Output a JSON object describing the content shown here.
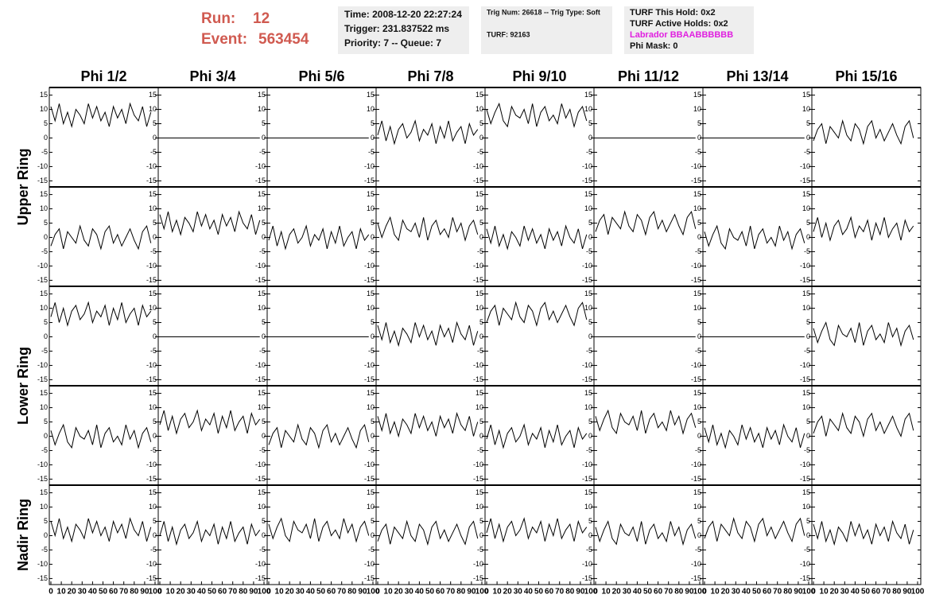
{
  "header": {
    "run_label": "Run:",
    "run": "12",
    "event_label": "Event:",
    "event": "563454",
    "info1": [
      "Time: 2008-12-20 22:27:24",
      "Trigger: 231.837522 ms",
      "Priority: 7 -- Queue: 7"
    ],
    "info2": [
      "Trig Num: 26618 -- Trig Type: Soft",
      "TURF: 92163"
    ],
    "info3": [
      "TURF This Hold: 0x2",
      "TURF Active Holds: 0x2",
      "Labrador BBAABBBBBB",
      "Phi Mask: 0"
    ]
  },
  "chart_data": {
    "type": "line",
    "columns": [
      "Phi 1/2",
      "Phi 3/4",
      "Phi 5/6",
      "Phi 7/8",
      "Phi 9/10",
      "Phi 11/12",
      "Phi 13/14",
      "Phi 15/16"
    ],
    "rows": [
      "Upper Ring",
      "Lower Ring",
      "Nadir Ring"
    ],
    "color": "#000000",
    "xlim": [
      0,
      100
    ],
    "xticks": [
      0,
      10,
      20,
      30,
      40,
      50,
      60,
      70,
      80,
      90,
      100
    ],
    "ylim": [
      -16,
      16
    ],
    "yticks": [
      -15,
      -10,
      -5,
      0,
      5,
      10,
      15
    ],
    "x": [
      0,
      4,
      8,
      12,
      16,
      20,
      24,
      28,
      32,
      36,
      40,
      44,
      48,
      52,
      56,
      60,
      64,
      68,
      72,
      76,
      80,
      84,
      88,
      92,
      96
    ],
    "panels": [
      {
        "values": [
          11,
          6,
          12,
          5,
          9,
          4,
          10,
          8,
          5,
          12,
          7,
          11,
          6,
          9,
          4,
          11,
          7,
          10,
          5,
          12,
          8,
          6,
          11,
          4,
          9
        ]
      },
      {
        "values": [
          0,
          0,
          0,
          0,
          0,
          0,
          0,
          0,
          0,
          0,
          0,
          0,
          0,
          0,
          0,
          0,
          0,
          0,
          0,
          0,
          0,
          0,
          0,
          0,
          0
        ]
      },
      {
        "values": [
          0,
          0,
          0,
          0,
          0,
          0,
          0,
          0,
          0,
          0,
          0,
          0,
          0,
          0,
          0,
          0,
          0,
          0,
          0,
          0,
          0,
          0,
          0,
          0,
          0
        ]
      },
      {
        "values": [
          1,
          6,
          -1,
          4,
          -2,
          3,
          5,
          0,
          2,
          6,
          -1,
          3,
          1,
          5,
          -2,
          4,
          0,
          6,
          -1,
          2,
          4,
          -2,
          5,
          1,
          3
        ]
      },
      {
        "values": [
          10,
          5,
          9,
          12,
          6,
          4,
          11,
          8,
          7,
          10,
          5,
          12,
          4,
          9,
          11,
          6,
          8,
          5,
          12,
          7,
          10,
          4,
          9,
          11,
          6
        ]
      },
      {
        "values": [
          0,
          0,
          0,
          0,
          0,
          0,
          0,
          0,
          0,
          0,
          0,
          0,
          0,
          0,
          0,
          0,
          0,
          0,
          0,
          0,
          0,
          0,
          0,
          0,
          0
        ]
      },
      {
        "values": [
          0,
          0,
          0,
          0,
          0,
          0,
          0,
          0,
          0,
          0,
          0,
          0,
          0,
          0,
          0,
          0,
          0,
          0,
          0,
          0,
          0,
          0,
          0,
          0,
          0
        ]
      },
      {
        "values": [
          -1,
          3,
          5,
          -2,
          4,
          2,
          0,
          6,
          1,
          -1,
          5,
          3,
          -2,
          4,
          6,
          0,
          3,
          -1,
          2,
          5,
          1,
          -2,
          4,
          6,
          0
        ]
      },
      {
        "values": [
          -3,
          1,
          3,
          -4,
          2,
          0,
          -2,
          4,
          -1,
          -3,
          3,
          1,
          -4,
          2,
          4,
          -2,
          1,
          -3,
          0,
          3,
          -1,
          -4,
          2,
          4,
          -2
        ]
      },
      {
        "values": [
          8,
          3,
          9,
          2,
          6,
          1,
          7,
          5,
          2,
          9,
          4,
          8,
          3,
          6,
          1,
          8,
          4,
          7,
          2,
          9,
          5,
          3,
          8,
          1,
          6
        ]
      },
      {
        "values": [
          -1,
          4,
          -3,
          2,
          -4,
          1,
          3,
          -2,
          0,
          4,
          -3,
          1,
          -1,
          3,
          -4,
          2,
          -2,
          4,
          -3,
          0,
          2,
          -4,
          3,
          -1,
          1
        ]
      },
      {
        "values": [
          5,
          0,
          4,
          7,
          1,
          -1,
          6,
          3,
          2,
          5,
          0,
          7,
          -1,
          4,
          6,
          1,
          3,
          0,
          7,
          2,
          5,
          -1,
          4,
          6,
          1
        ]
      },
      {
        "values": [
          3,
          -2,
          4,
          -3,
          1,
          -4,
          2,
          0,
          -3,
          4,
          -1,
          3,
          -2,
          1,
          -4,
          3,
          -1,
          2,
          -3,
          4,
          0,
          -2,
          3,
          -4,
          1
        ]
      },
      {
        "values": [
          2,
          6,
          8,
          1,
          7,
          5,
          3,
          9,
          4,
          2,
          8,
          6,
          1,
          7,
          9,
          3,
          6,
          2,
          5,
          8,
          4,
          1,
          7,
          9,
          3
        ]
      },
      {
        "values": [
          2,
          -3,
          1,
          4,
          -2,
          -4,
          3,
          0,
          -1,
          2,
          -3,
          4,
          -4,
          1,
          3,
          -2,
          0,
          -3,
          4,
          -1,
          2,
          -4,
          1,
          3,
          -2
        ]
      },
      {
        "values": [
          2,
          7,
          0,
          5,
          -1,
          4,
          6,
          1,
          3,
          7,
          0,
          4,
          2,
          6,
          -1,
          5,
          1,
          7,
          0,
          3,
          5,
          -1,
          6,
          2,
          4
        ]
      },
      {
        "values": [
          7,
          12,
          5,
          10,
          4,
          9,
          11,
          6,
          8,
          12,
          5,
          9,
          7,
          11,
          4,
          10,
          6,
          12,
          5,
          8,
          10,
          4,
          11,
          7,
          9
        ]
      },
      {
        "values": [
          0,
          0,
          0,
          0,
          0,
          0,
          0,
          0,
          0,
          0,
          0,
          0,
          0,
          0,
          0,
          0,
          0,
          0,
          0,
          0,
          0,
          0,
          0,
          0,
          0
        ]
      },
      {
        "values": [
          0,
          0,
          0,
          0,
          0,
          0,
          0,
          0,
          0,
          0,
          0,
          0,
          0,
          0,
          0,
          0,
          0,
          0,
          0,
          0,
          0,
          0,
          0,
          0,
          0
        ]
      },
      {
        "values": [
          4,
          -1,
          5,
          -2,
          2,
          -3,
          3,
          1,
          -2,
          5,
          0,
          4,
          -1,
          2,
          -3,
          4,
          0,
          3,
          -2,
          5,
          1,
          -1,
          4,
          -3,
          2
        ]
      },
      {
        "values": [
          5,
          9,
          11,
          4,
          10,
          8,
          6,
          12,
          7,
          5,
          11,
          9,
          4,
          10,
          12,
          6,
          9,
          5,
          8,
          11,
          7,
          4,
          10,
          12,
          6
        ]
      },
      {
        "values": [
          0,
          0,
          0,
          0,
          0,
          0,
          0,
          0,
          0,
          0,
          0,
          0,
          0,
          0,
          0,
          0,
          0,
          0,
          0,
          0,
          0,
          0,
          0,
          0,
          0
        ]
      },
      {
        "values": [
          0,
          0,
          0,
          0,
          0,
          0,
          0,
          0,
          0,
          0,
          0,
          0,
          0,
          0,
          0,
          0,
          0,
          0,
          0,
          0,
          0,
          0,
          0,
          0,
          0
        ]
      },
      {
        "values": [
          3,
          -2,
          2,
          5,
          -1,
          -3,
          4,
          1,
          0,
          3,
          -2,
          5,
          -3,
          2,
          4,
          -1,
          1,
          -2,
          5,
          0,
          3,
          -3,
          2,
          4,
          -1
        ]
      },
      {
        "values": [
          2,
          -3,
          1,
          4,
          -2,
          -4,
          3,
          0,
          -1,
          2,
          -3,
          4,
          -4,
          1,
          3,
          -2,
          0,
          -3,
          4,
          -1,
          2,
          -4,
          1,
          3,
          -2
        ]
      },
      {
        "values": [
          4,
          9,
          2,
          7,
          1,
          6,
          8,
          3,
          5,
          9,
          2,
          6,
          4,
          8,
          1,
          7,
          3,
          9,
          2,
          5,
          7,
          1,
          8,
          4,
          6
        ]
      },
      {
        "values": [
          -3,
          1,
          3,
          -4,
          2,
          0,
          -2,
          4,
          -1,
          -3,
          3,
          1,
          -4,
          2,
          4,
          -2,
          1,
          -3,
          0,
          3,
          -1,
          -4,
          2,
          4,
          -2
        ]
      },
      {
        "values": [
          7,
          2,
          8,
          1,
          5,
          0,
          6,
          4,
          1,
          8,
          3,
          7,
          2,
          5,
          0,
          7,
          3,
          6,
          1,
          8,
          4,
          2,
          7,
          0,
          5
        ]
      },
      {
        "values": [
          -1,
          4,
          -3,
          2,
          -4,
          1,
          3,
          -2,
          0,
          4,
          -3,
          1,
          -1,
          3,
          -4,
          2,
          -2,
          4,
          -3,
          0,
          2,
          -4,
          3,
          -1,
          1
        ]
      },
      {
        "values": [
          7,
          2,
          6,
          9,
          3,
          1,
          8,
          5,
          4,
          7,
          2,
          9,
          1,
          6,
          8,
          3,
          5,
          2,
          9,
          4,
          7,
          1,
          6,
          8,
          3
        ]
      },
      {
        "values": [
          3,
          -2,
          4,
          -3,
          1,
          -4,
          2,
          0,
          -3,
          4,
          -1,
          3,
          -2,
          1,
          -4,
          3,
          -1,
          2,
          -3,
          4,
          0,
          -2,
          3,
          -4,
          1
        ]
      },
      {
        "values": [
          1,
          5,
          7,
          0,
          6,
          4,
          2,
          8,
          3,
          1,
          7,
          5,
          0,
          6,
          8,
          2,
          5,
          1,
          4,
          7,
          3,
          0,
          6,
          8,
          2
        ]
      },
      {
        "values": [
          5,
          0,
          6,
          -1,
          3,
          -2,
          4,
          2,
          -1,
          6,
          1,
          5,
          0,
          3,
          -2,
          5,
          1,
          4,
          -1,
          6,
          2,
          0,
          5,
          -2,
          3
        ]
      },
      {
        "values": [
          0,
          5,
          -2,
          3,
          -3,
          2,
          4,
          -1,
          1,
          5,
          -2,
          2,
          0,
          4,
          -3,
          3,
          -1,
          5,
          -2,
          1,
          3,
          -3,
          4,
          0,
          2
        ]
      },
      {
        "values": [
          4,
          -1,
          3,
          6,
          0,
          -2,
          5,
          2,
          1,
          4,
          -1,
          6,
          -2,
          3,
          5,
          0,
          2,
          -1,
          6,
          1,
          4,
          -2,
          3,
          5,
          0
        ]
      },
      {
        "values": [
          -2,
          2,
          4,
          -3,
          3,
          1,
          -1,
          5,
          0,
          -2,
          4,
          2,
          -3,
          3,
          5,
          -1,
          2,
          -2,
          1,
          4,
          0,
          -3,
          3,
          5,
          -1
        ]
      },
      {
        "values": [
          1,
          6,
          -1,
          4,
          -2,
          3,
          5,
          0,
          2,
          6,
          -1,
          3,
          1,
          5,
          -2,
          4,
          0,
          6,
          -1,
          2,
          4,
          -2,
          5,
          1,
          3
        ]
      },
      {
        "values": [
          3,
          -2,
          2,
          5,
          -1,
          -3,
          4,
          1,
          0,
          3,
          -2,
          5,
          -3,
          2,
          4,
          -1,
          1,
          -2,
          5,
          0,
          3,
          -3,
          2,
          4,
          -1
        ]
      },
      {
        "values": [
          -1,
          3,
          5,
          -2,
          4,
          2,
          0,
          6,
          1,
          -1,
          5,
          3,
          -2,
          4,
          6,
          0,
          3,
          -1,
          2,
          5,
          1,
          -2,
          4,
          6,
          0
        ]
      },
      {
        "values": [
          4,
          -1,
          5,
          -2,
          2,
          -3,
          3,
          1,
          -2,
          5,
          0,
          4,
          -1,
          2,
          -3,
          4,
          0,
          3,
          -2,
          5,
          1,
          -1,
          4,
          -3,
          2
        ]
      }
    ]
  }
}
